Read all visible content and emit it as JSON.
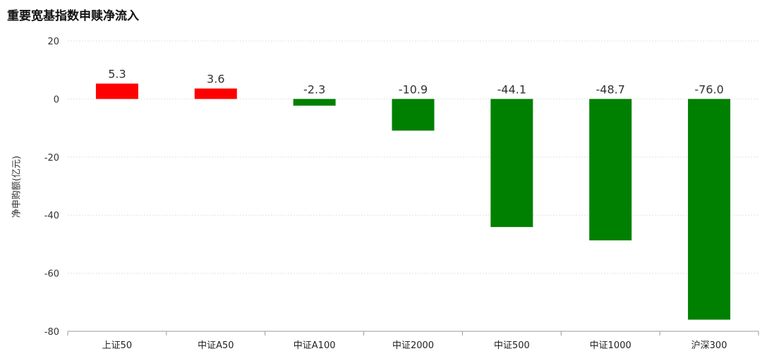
{
  "chart_data": {
    "type": "bar",
    "title": "重要宽基指数申赎净流入",
    "xlabel": "",
    "ylabel": "净申购额(亿元)",
    "categories": [
      "上证50",
      "中证A50",
      "中证A100",
      "中证2000",
      "中证500",
      "中证1000",
      "沪深300"
    ],
    "values": [
      5.3,
      3.6,
      -2.3,
      -10.9,
      -44.1,
      -48.7,
      -76.0
    ],
    "data_labels": [
      "5.3",
      "3.6",
      "-2.3",
      "-10.9",
      "-44.1",
      "-48.7",
      "-76.0"
    ],
    "ylim": [
      -80,
      20
    ],
    "yticks": [
      20,
      0,
      -20,
      -40,
      -60,
      -80
    ],
    "grid": true,
    "colors": {
      "positive": "#ff0000",
      "negative": "#008000"
    }
  }
}
